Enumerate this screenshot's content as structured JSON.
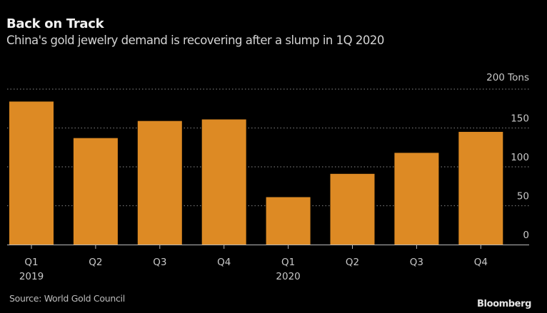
{
  "chart_data": {
    "type": "bar",
    "title": "Back on Track",
    "subtitle": "China's gold jewelry demand is recovering after a slump in 1Q 2020",
    "categories": [
      "Q1 2019",
      "Q2 2019",
      "Q3 2019",
      "Q4 2019",
      "Q1 2020",
      "Q2 2020",
      "Q3 2020",
      "Q4 2020"
    ],
    "x_tick_labels": [
      {
        "quarter": "Q1",
        "year": "2019"
      },
      {
        "quarter": "Q2",
        "year": ""
      },
      {
        "quarter": "Q3",
        "year": ""
      },
      {
        "quarter": "Q4",
        "year": ""
      },
      {
        "quarter": "Q1",
        "year": "2020"
      },
      {
        "quarter": "Q2",
        "year": ""
      },
      {
        "quarter": "Q3",
        "year": ""
      },
      {
        "quarter": "Q4",
        "year": ""
      }
    ],
    "series": [
      {
        "name": "Gold jewelry demand (tons)",
        "values": [
          184,
          137,
          159,
          161,
          61,
          91,
          118,
          145
        ],
        "color": "#DD8A24"
      }
    ],
    "xlabel": "",
    "ylabel": "Tons",
    "unit": "Tons",
    "ylim": [
      0,
      200
    ],
    "yticks": [
      0,
      50,
      100,
      150,
      200
    ],
    "ytick_labels": [
      "0",
      "50",
      "100",
      "150",
      "200 Tons"
    ],
    "y_axis_side": "right",
    "grid": true,
    "grid_style": "dotted",
    "legend": "none"
  },
  "footer": {
    "source": "Source: World Gold Council",
    "brand": "Bloomberg"
  },
  "colors": {
    "background": "#000000",
    "bar": "#DD8A24",
    "text": "#D0D0D0",
    "grid": "#707070",
    "axis": "#BBBBBB"
  }
}
